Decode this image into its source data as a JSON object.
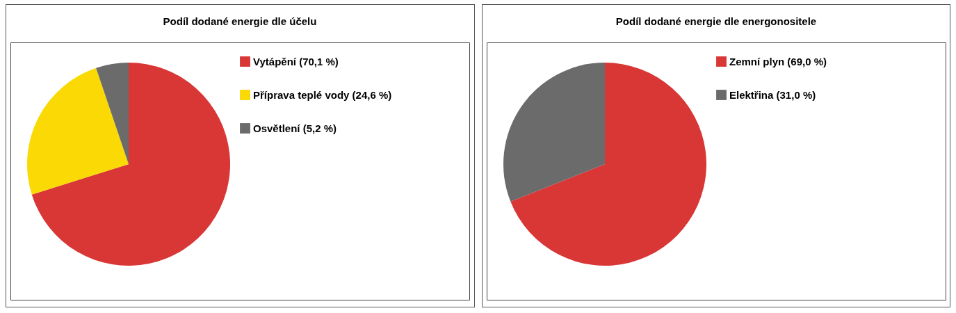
{
  "chart_data": [
    {
      "type": "pie",
      "title": "Podíl dodané energie dle účelu",
      "categories": [
        "Vytápění (70,1 %)",
        "Příprava teplé vody (24,6 %)",
        "Osvětlení (5,2 %)"
      ],
      "values": [
        70.1,
        24.6,
        5.2
      ],
      "colors": [
        "#d93636",
        "#fad905",
        "#6b6b6b"
      ],
      "legend": "top right"
    },
    {
      "type": "pie",
      "title": "Podíl dodané energie dle energonositele",
      "categories": [
        "Zemní plyn (69,0 %)",
        "Elektřina (31,0 %)"
      ],
      "values": [
        69.0,
        31.0
      ],
      "colors": [
        "#d93636",
        "#6b6b6b"
      ],
      "legend": "top right"
    }
  ]
}
